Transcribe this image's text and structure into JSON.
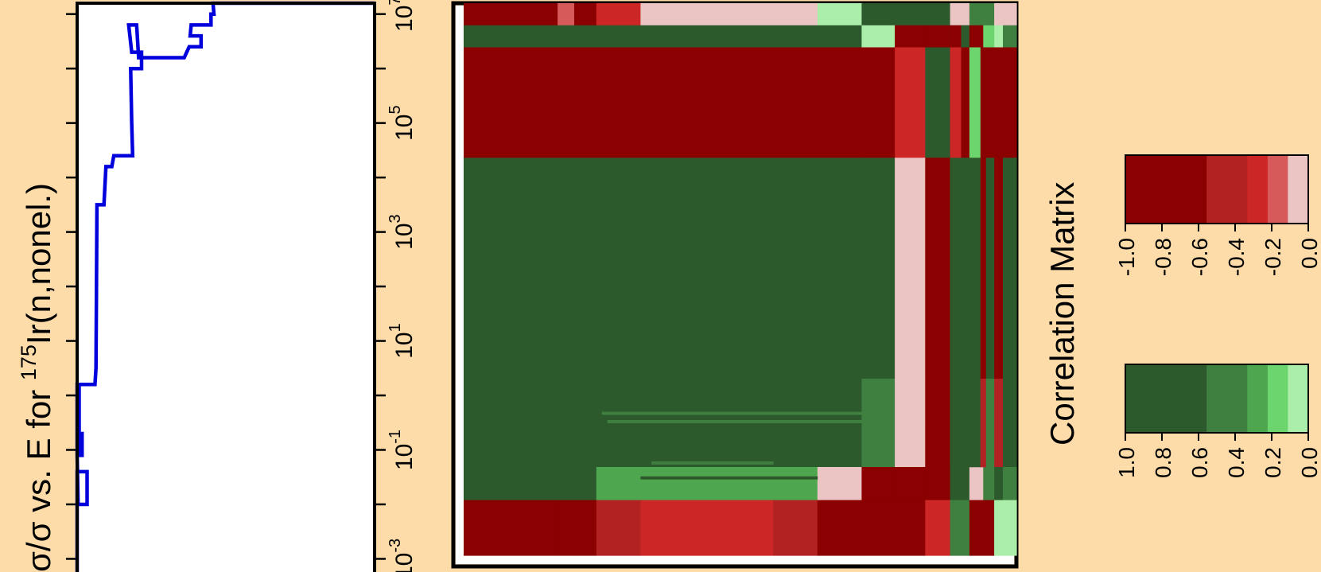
{
  "chart_data": [
    {
      "type": "line",
      "ylabel_parts": [
        "σ/σ vs. E for ",
        "175",
        "Ir(n,nonel.)"
      ],
      "ylim_log10": [
        -3.3,
        7.2
      ],
      "y_tick_labels": [
        {
          "base": "10",
          "exp": "-3",
          "log10": -3
        },
        {
          "base": "10",
          "exp": "-1",
          "log10": -1
        },
        {
          "base": "10",
          "exp": "1",
          "log10": 1
        },
        {
          "base": "10",
          "exp": "3",
          "log10": 3
        },
        {
          "base": "10",
          "exp": "5",
          "log10": 5
        },
        {
          "base": "10",
          "exp": "7",
          "log10": 7
        }
      ],
      "x_range": [
        0.0,
        0.3
      ],
      "line_color": "#0000dd",
      "step_points": [
        [
          0.0,
          -3.3
        ],
        [
          0.0,
          -2.0
        ],
        [
          0.0,
          -1.4
        ],
        [
          0.01,
          -1.4
        ],
        [
          0.01,
          -2.0
        ],
        [
          0.001,
          -2.0
        ],
        [
          0.0,
          -1.1
        ],
        [
          0.0,
          0.2
        ],
        [
          0.002,
          0.2
        ],
        [
          0.002,
          -0.7
        ],
        [
          0.005,
          -0.7
        ],
        [
          0.005,
          -1.1
        ],
        [
          0.002,
          -1.1
        ],
        [
          0.001,
          0.2
        ],
        [
          0.018,
          0.2
        ],
        [
          0.019,
          0.5
        ],
        [
          0.02,
          3.5
        ],
        [
          0.027,
          3.5
        ],
        [
          0.029,
          4.2
        ],
        [
          0.035,
          4.2
        ],
        [
          0.037,
          4.4
        ],
        [
          0.056,
          4.4
        ],
        [
          0.055,
          5.0
        ],
        [
          0.054,
          6.0
        ],
        [
          0.065,
          6.0
        ],
        [
          0.065,
          6.3
        ],
        [
          0.055,
          6.3
        ],
        [
          0.052,
          6.8
        ],
        [
          0.06,
          6.8
        ],
        [
          0.062,
          6.2
        ],
        [
          0.108,
          6.2
        ],
        [
          0.113,
          6.4
        ],
        [
          0.125,
          6.4
        ],
        [
          0.125,
          6.6
        ],
        [
          0.114,
          6.6
        ],
        [
          0.115,
          6.8
        ],
        [
          0.135,
          6.8
        ],
        [
          0.135,
          7.0
        ],
        [
          0.138,
          7.0
        ],
        [
          0.137,
          7.2
        ],
        [
          0.3,
          7.2
        ]
      ]
    },
    {
      "type": "heatmap",
      "title": "Correlation Matrix",
      "neg_scale": {
        "colors": [
          "#8b0000",
          "#b22222",
          "#cd2626",
          "#d75a5a",
          "#ebc4c4"
        ],
        "breaks": [
          -1.0,
          -0.6,
          -0.4,
          -0.3,
          -0.2,
          -0.1
        ],
        "tick_labels": [
          "-1.0",
          "-0.8",
          "-0.6",
          "-0.4",
          "-0.2",
          "0.0"
        ]
      },
      "pos_scale": {
        "colors": [
          "#2d5a2d",
          "#3f8040",
          "#4ea64f",
          "#6dd56e",
          "#aaeeaa"
        ],
        "breaks": [
          1.0,
          0.6,
          0.4,
          0.3,
          0.2,
          0.1
        ],
        "tick_labels": [
          "1.0",
          "0.8",
          "0.6",
          "0.4",
          "0.2",
          "0.0"
        ]
      },
      "col_grid": [
        0.0,
        0.17,
        0.2,
        0.24,
        0.32,
        0.64,
        0.72,
        0.78,
        0.82,
        0.835,
        0.88,
        0.89,
        0.915,
        0.94,
        0.96,
        1.0
      ],
      "cells": [
        {
          "r0": 0.0,
          "r1": 0.04,
          "c0": 0.0,
          "c1": 0.17,
          "v": -0.9
        },
        {
          "r0": 0.0,
          "r1": 0.04,
          "c0": 0.17,
          "c1": 0.2,
          "v": -0.2
        },
        {
          "r0": 0.0,
          "r1": 0.04,
          "c0": 0.2,
          "c1": 0.24,
          "v": -0.7
        },
        {
          "r0": 0.0,
          "r1": 0.04,
          "c0": 0.24,
          "c1": 0.32,
          "v": -0.3
        },
        {
          "r0": 0.0,
          "r1": 0.04,
          "c0": 0.32,
          "c1": 0.64,
          "v": -0.15
        },
        {
          "r0": 0.0,
          "r1": 0.04,
          "c0": 0.64,
          "c1": 0.72,
          "v": 0.15
        },
        {
          "r0": 0.0,
          "r1": 0.04,
          "c0": 0.72,
          "c1": 0.78,
          "v": 0.7
        },
        {
          "r0": 0.0,
          "r1": 0.04,
          "c0": 0.78,
          "c1": 0.835,
          "v": 0.9
        },
        {
          "r0": 0.0,
          "r1": 0.04,
          "c0": 0.835,
          "c1": 0.88,
          "v": 0.7
        },
        {
          "r0": 0.0,
          "r1": 0.04,
          "c0": 0.88,
          "c1": 0.915,
          "v": -0.15
        },
        {
          "r0": 0.0,
          "r1": 0.04,
          "c0": 0.915,
          "c1": 0.96,
          "v": 0.5
        },
        {
          "r0": 0.0,
          "r1": 0.04,
          "c0": 0.96,
          "c1": 1.0,
          "v": -0.15
        },
        {
          "r0": 0.04,
          "r1": 0.08,
          "c0": 0.0,
          "c1": 0.72,
          "v": 0.9
        },
        {
          "r0": 0.04,
          "r1": 0.08,
          "c0": 0.72,
          "c1": 0.78,
          "v": 0.15
        },
        {
          "r0": 0.04,
          "r1": 0.08,
          "c0": 0.78,
          "c1": 0.835,
          "v": -0.7
        },
        {
          "r0": 0.04,
          "r1": 0.08,
          "c0": 0.835,
          "c1": 0.88,
          "v": -0.9
        },
        {
          "r0": 0.04,
          "r1": 0.08,
          "c0": 0.88,
          "c1": 0.96,
          "v": 0.9
        },
        {
          "r0": 0.04,
          "r1": 0.08,
          "c0": 0.96,
          "c1": 1.0,
          "v": 0.5
        },
        {
          "r0": 0.08,
          "r1": 0.28,
          "c0": 0.0,
          "c1": 0.72,
          "v": -0.95
        },
        {
          "r0": 0.08,
          "r1": 0.28,
          "c0": 0.72,
          "c1": 0.78,
          "v": -0.75
        },
        {
          "r0": 0.08,
          "r1": 0.28,
          "c0": 0.78,
          "c1": 0.835,
          "v": -0.3
        },
        {
          "r0": 0.08,
          "r1": 0.28,
          "c0": 0.835,
          "c1": 0.88,
          "v": 0.9
        },
        {
          "r0": 0.08,
          "r1": 0.28,
          "c0": 0.88,
          "c1": 0.96,
          "v": -0.9
        },
        {
          "r0": 0.08,
          "r1": 0.28,
          "c0": 0.96,
          "c1": 1.0,
          "v": -0.75
        },
        {
          "r0": 0.28,
          "r1": 0.68,
          "c0": 0.0,
          "c1": 0.72,
          "v": 0.9
        },
        {
          "r0": 0.28,
          "r1": 0.68,
          "c0": 0.72,
          "c1": 0.78,
          "v": 0.7
        },
        {
          "r0": 0.28,
          "r1": 0.68,
          "c0": 0.78,
          "c1": 0.835,
          "v": -0.15
        },
        {
          "r0": 0.28,
          "r1": 0.68,
          "c0": 0.835,
          "c1": 0.88,
          "v": -0.9
        },
        {
          "r0": 0.28,
          "r1": 0.68,
          "c0": 0.88,
          "c1": 0.96,
          "v": 0.9
        },
        {
          "r0": 0.28,
          "r1": 0.68,
          "c0": 0.96,
          "c1": 1.0,
          "v": 0.9
        },
        {
          "r0": 0.68,
          "r1": 0.76,
          "c0": 0.0,
          "c1": 0.64,
          "v": 0.9
        },
        {
          "r0": 0.68,
          "r1": 0.76,
          "c0": 0.64,
          "c1": 0.72,
          "v": 0.7
        },
        {
          "r0": 0.68,
          "r1": 0.76,
          "c0": 0.72,
          "c1": 0.78,
          "v": 0.5
        },
        {
          "r0": 0.68,
          "r1": 0.76,
          "c0": 0.78,
          "c1": 0.835,
          "v": -0.15
        },
        {
          "r0": 0.68,
          "r1": 0.76,
          "c0": 0.835,
          "c1": 0.88,
          "v": -0.7
        },
        {
          "r0": 0.68,
          "r1": 0.76,
          "c0": 0.88,
          "c1": 0.96,
          "v": 0.7
        },
        {
          "r0": 0.68,
          "r1": 0.76,
          "c0": 0.96,
          "c1": 1.0,
          "v": 0.9
        },
        {
          "r0": 0.76,
          "r1": 0.84,
          "c0": 0.0,
          "c1": 0.72,
          "v": 0.9
        },
        {
          "r0": 0.76,
          "r1": 0.84,
          "c0": 0.72,
          "c1": 0.78,
          "v": 0.5
        },
        {
          "r0": 0.76,
          "r1": 0.84,
          "c0": 0.78,
          "c1": 0.835,
          "v": -0.15
        },
        {
          "r0": 0.76,
          "r1": 0.84,
          "c0": 0.835,
          "c1": 0.88,
          "v": -0.75
        },
        {
          "r0": 0.76,
          "r1": 0.84,
          "c0": 0.88,
          "c1": 0.96,
          "v": 0.7
        },
        {
          "r0": 0.76,
          "r1": 0.84,
          "c0": 0.96,
          "c1": 1.0,
          "v": 0.9
        },
        {
          "r0": 0.84,
          "r1": 0.9,
          "c0": 0.0,
          "c1": 0.17,
          "v": 0.9
        },
        {
          "r0": 0.84,
          "r1": 0.9,
          "c0": 0.17,
          "c1": 0.24,
          "v": 0.7
        },
        {
          "r0": 0.84,
          "r1": 0.9,
          "c0": 0.24,
          "c1": 0.64,
          "v": 0.35
        },
        {
          "r0": 0.84,
          "r1": 0.9,
          "c0": 0.64,
          "c1": 0.72,
          "v": -0.15
        },
        {
          "r0": 0.84,
          "r1": 0.9,
          "c0": 0.72,
          "c1": 0.78,
          "v": -0.75
        },
        {
          "r0": 0.84,
          "r1": 0.9,
          "c0": 0.78,
          "c1": 0.835,
          "v": -0.95
        },
        {
          "r0": 0.84,
          "r1": 0.9,
          "c0": 0.835,
          "c1": 0.88,
          "v": -0.75
        },
        {
          "r0": 0.84,
          "r1": 0.9,
          "c0": 0.88,
          "c1": 0.915,
          "v": 0.7
        },
        {
          "r0": 0.84,
          "r1": 0.9,
          "c0": 0.915,
          "c1": 0.94,
          "v": -0.15
        },
        {
          "r0": 0.84,
          "r1": 0.9,
          "c0": 0.94,
          "c1": 1.0,
          "v": 0.5
        },
        {
          "r0": 0.9,
          "r1": 1.0,
          "c0": 0.0,
          "c1": 0.17,
          "v": -0.9
        },
        {
          "r0": 0.9,
          "r1": 1.0,
          "c0": 0.17,
          "c1": 0.2,
          "v": -0.7
        },
        {
          "r0": 0.9,
          "r1": 1.0,
          "c0": 0.2,
          "c1": 0.24,
          "v": -0.9
        },
        {
          "r0": 0.9,
          "r1": 1.0,
          "c0": 0.24,
          "c1": 0.32,
          "v": -0.5
        },
        {
          "r0": 0.9,
          "r1": 1.0,
          "c0": 0.32,
          "c1": 0.56,
          "v": -0.3
        },
        {
          "r0": 0.9,
          "r1": 1.0,
          "c0": 0.56,
          "c1": 0.64,
          "v": -0.5
        },
        {
          "r0": 0.9,
          "r1": 1.0,
          "c0": 0.64,
          "c1": 0.72,
          "v": -0.7
        },
        {
          "r0": 0.9,
          "r1": 1.0,
          "c0": 0.72,
          "c1": 0.835,
          "v": -0.95
        },
        {
          "r0": 0.9,
          "r1": 1.0,
          "c0": 0.835,
          "c1": 0.88,
          "v": -0.3
        },
        {
          "r0": 0.9,
          "r1": 1.0,
          "c0": 0.88,
          "c1": 0.915,
          "v": 0.5
        },
        {
          "r0": 0.9,
          "r1": 1.0,
          "c0": 0.915,
          "c1": 0.96,
          "v": -0.7
        },
        {
          "r0": 0.9,
          "r1": 1.0,
          "c0": 0.96,
          "c1": 1.0,
          "v": 0.15
        }
      ],
      "stripes": [
        {
          "r0": 0.04,
          "r1": 0.08,
          "c0": 0.88,
          "c1": 0.9,
          "v": -0.6
        },
        {
          "r0": 0.04,
          "r1": 0.08,
          "c0": 0.9,
          "c1": 0.915,
          "v": 0.9
        },
        {
          "r0": 0.04,
          "r1": 0.08,
          "c0": 0.915,
          "c1": 0.94,
          "v": -0.8
        },
        {
          "r0": 0.04,
          "r1": 0.08,
          "c0": 0.94,
          "c1": 0.96,
          "v": 0.2
        },
        {
          "r0": 0.08,
          "r1": 0.28,
          "c0": 0.88,
          "c1": 0.9,
          "v": -0.3
        },
        {
          "r0": 0.08,
          "r1": 0.28,
          "c0": 0.9,
          "c1": 0.915,
          "v": -0.6
        },
        {
          "r0": 0.08,
          "r1": 0.28,
          "c0": 0.915,
          "c1": 0.935,
          "v": 0.2
        },
        {
          "r0": 0.08,
          "r1": 0.28,
          "c0": 0.935,
          "c1": 0.96,
          "v": -0.9
        },
        {
          "r0": 0.28,
          "r1": 0.68,
          "c0": 0.88,
          "c1": 0.9,
          "v": 0.9
        },
        {
          "r0": 0.28,
          "r1": 0.68,
          "c0": 0.9,
          "c1": 0.915,
          "v": 0.9
        },
        {
          "r0": 0.28,
          "r1": 0.68,
          "c0": 0.915,
          "c1": 0.935,
          "v": 0.9
        },
        {
          "r0": 0.28,
          "r1": 0.68,
          "c0": 0.935,
          "c1": 0.945,
          "v": -0.9
        },
        {
          "r0": 0.28,
          "r1": 0.68,
          "c0": 0.945,
          "c1": 0.96,
          "v": 0.9
        },
        {
          "r0": 0.68,
          "r1": 0.84,
          "c0": 0.88,
          "c1": 0.9,
          "v": 0.7
        },
        {
          "r0": 0.68,
          "r1": 0.84,
          "c0": 0.9,
          "c1": 0.915,
          "v": 0.9
        },
        {
          "r0": 0.68,
          "r1": 0.84,
          "c0": 0.915,
          "c1": 0.935,
          "v": 0.7
        },
        {
          "r0": 0.68,
          "r1": 0.84,
          "c0": 0.935,
          "c1": 0.945,
          "v": -0.5
        },
        {
          "r0": 0.68,
          "r1": 0.84,
          "c0": 0.945,
          "c1": 0.96,
          "v": 0.5
        },
        {
          "r0": 0.0,
          "r1": 0.04,
          "c0": 0.96,
          "c1": 0.975,
          "v": -0.15
        },
        {
          "r0": 0.04,
          "r1": 0.08,
          "c0": 0.96,
          "c1": 0.975,
          "v": 0.15
        },
        {
          "r0": 0.08,
          "r1": 0.28,
          "c0": 0.96,
          "c1": 0.975,
          "v": -0.9
        },
        {
          "r0": 0.28,
          "r1": 0.68,
          "c0": 0.96,
          "c1": 0.975,
          "v": -0.9
        },
        {
          "r0": 0.68,
          "r1": 0.84,
          "c0": 0.96,
          "c1": 0.975,
          "v": -0.5
        },
        {
          "r0": 0.84,
          "r1": 0.9,
          "c0": 0.96,
          "c1": 0.975,
          "v": 0.9
        },
        {
          "r0": 0.9,
          "r1": 1.0,
          "c0": 0.96,
          "c1": 0.975,
          "v": 0.15
        },
        {
          "r0": 0.74,
          "r1": 0.745,
          "c0": 0.25,
          "c1": 0.72,
          "v": 0.5
        },
        {
          "r0": 0.755,
          "r1": 0.76,
          "c0": 0.26,
          "c1": 0.72,
          "v": 0.5
        },
        {
          "r0": 0.83,
          "r1": 0.835,
          "c0": 0.34,
          "c1": 0.56,
          "v": 0.5
        },
        {
          "r0": 0.857,
          "r1": 0.862,
          "c0": 0.32,
          "c1": 0.64,
          "v": 0.7
        }
      ]
    }
  ]
}
